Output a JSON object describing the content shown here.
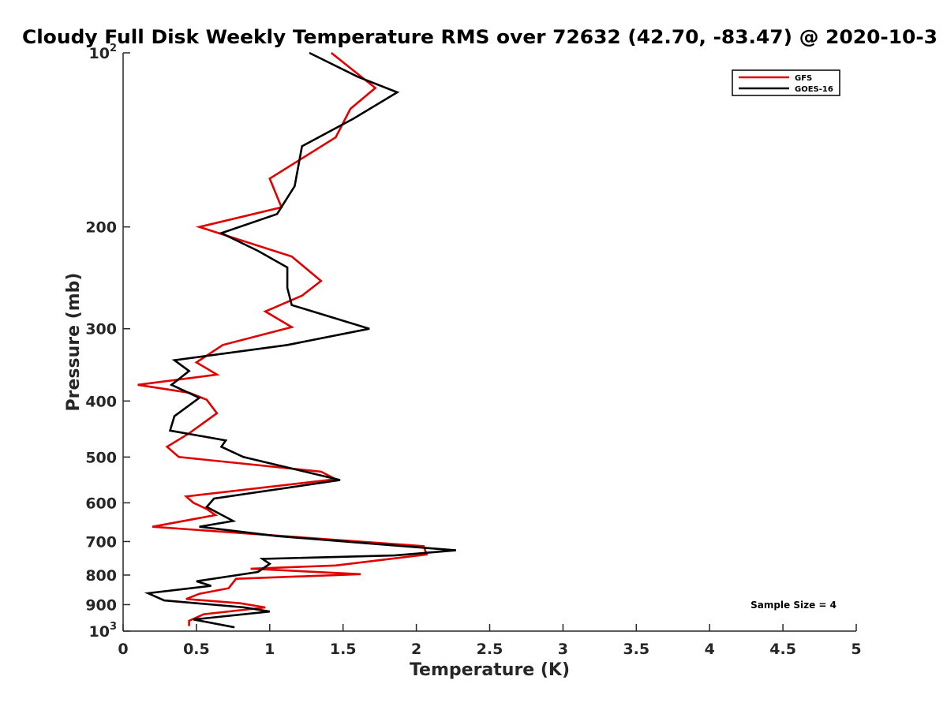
{
  "chart_data": {
    "type": "line",
    "title": "Cloudy Full Disk Weekly Temperature RMS over 72632 (42.70, -83.47) @ 2020-10-3",
    "xlabel": "Temperature (K)",
    "ylabel": "Pressure (mb)",
    "xlim": [
      0,
      5
    ],
    "ylim": [
      100,
      1000
    ],
    "y_scale": "log",
    "y_reversed": true,
    "grid": false,
    "legend_position": "top-right",
    "x_ticks": [
      0,
      0.5,
      1,
      1.5,
      2,
      2.5,
      3,
      3.5,
      4,
      4.5,
      5
    ],
    "x_tick_labels": [
      "0",
      "0.5",
      "1",
      "1.5",
      "2",
      "2.5",
      "3",
      "3.5",
      "4",
      "4.5",
      "5"
    ],
    "y_ticks": [
      100,
      200,
      300,
      400,
      500,
      600,
      700,
      800,
      900,
      1000
    ],
    "y_tick_labels": [
      {
        "base": "10",
        "exp": "2"
      },
      {
        "base": "200",
        "exp": ""
      },
      {
        "base": "300",
        "exp": ""
      },
      {
        "base": "400",
        "exp": ""
      },
      {
        "base": "500",
        "exp": ""
      },
      {
        "base": "600",
        "exp": ""
      },
      {
        "base": "700",
        "exp": ""
      },
      {
        "base": "800",
        "exp": ""
      },
      {
        "base": "900",
        "exp": ""
      },
      {
        "base": "10",
        "exp": "3"
      }
    ],
    "annotation": "Sample Size = 4",
    "series": [
      {
        "name": "GFS",
        "color": "#e00000",
        "points": [
          [
            1.42,
            100
          ],
          [
            1.72,
            115
          ],
          [
            1.55,
            125
          ],
          [
            1.45,
            140
          ],
          [
            1.0,
            165
          ],
          [
            1.08,
            185
          ],
          [
            0.52,
            200
          ],
          [
            1.15,
            225
          ],
          [
            1.35,
            248
          ],
          [
            1.22,
            263
          ],
          [
            0.97,
            280
          ],
          [
            1.15,
            298
          ],
          [
            0.68,
            320
          ],
          [
            0.5,
            343
          ],
          [
            0.64,
            360
          ],
          [
            0.1,
            375
          ],
          [
            0.45,
            387
          ],
          [
            0.57,
            398
          ],
          [
            0.64,
            420
          ],
          [
            0.45,
            455
          ],
          [
            0.3,
            480
          ],
          [
            0.38,
            500
          ],
          [
            1.35,
            530
          ],
          [
            1.45,
            546
          ],
          [
            0.43,
            585
          ],
          [
            0.48,
            600
          ],
          [
            0.57,
            615
          ],
          [
            0.63,
            630
          ],
          [
            0.2,
            660
          ],
          [
            2.05,
            713
          ],
          [
            2.07,
            737
          ],
          [
            1.45,
            770
          ],
          [
            0.87,
            780
          ],
          [
            1.62,
            797
          ],
          [
            0.77,
            812
          ],
          [
            0.72,
            843
          ],
          [
            0.52,
            862
          ],
          [
            0.43,
            880
          ],
          [
            0.8,
            895
          ],
          [
            0.97,
            910
          ],
          [
            0.55,
            935
          ],
          [
            0.45,
            960
          ],
          [
            0.45,
            980
          ]
        ]
      },
      {
        "name": "GOES-16",
        "color": "#000000",
        "points": [
          [
            1.27,
            100
          ],
          [
            1.6,
            110
          ],
          [
            1.87,
            117
          ],
          [
            1.57,
            130
          ],
          [
            1.22,
            145
          ],
          [
            1.17,
            170
          ],
          [
            1.05,
            190
          ],
          [
            0.67,
            205
          ],
          [
            0.92,
            220
          ],
          [
            1.12,
            235
          ],
          [
            1.12,
            255
          ],
          [
            1.15,
            273
          ],
          [
            1.68,
            300
          ],
          [
            1.12,
            320
          ],
          [
            0.35,
            340
          ],
          [
            0.45,
            355
          ],
          [
            0.33,
            375
          ],
          [
            0.52,
            395
          ],
          [
            0.35,
            425
          ],
          [
            0.32,
            450
          ],
          [
            0.7,
            468
          ],
          [
            0.67,
            480
          ],
          [
            0.82,
            500
          ],
          [
            1.48,
            548
          ],
          [
            0.62,
            590
          ],
          [
            0.57,
            610
          ],
          [
            0.75,
            645
          ],
          [
            0.52,
            660
          ],
          [
            1.05,
            685
          ],
          [
            2.27,
            725
          ],
          [
            1.85,
            740
          ],
          [
            0.95,
            750
          ],
          [
            1.0,
            765
          ],
          [
            0.92,
            790
          ],
          [
            0.5,
            820
          ],
          [
            0.6,
            835
          ],
          [
            0.17,
            860
          ],
          [
            0.28,
            885
          ],
          [
            0.83,
            910
          ],
          [
            1.0,
            925
          ],
          [
            0.48,
            955
          ],
          [
            0.76,
            985
          ]
        ]
      }
    ]
  }
}
